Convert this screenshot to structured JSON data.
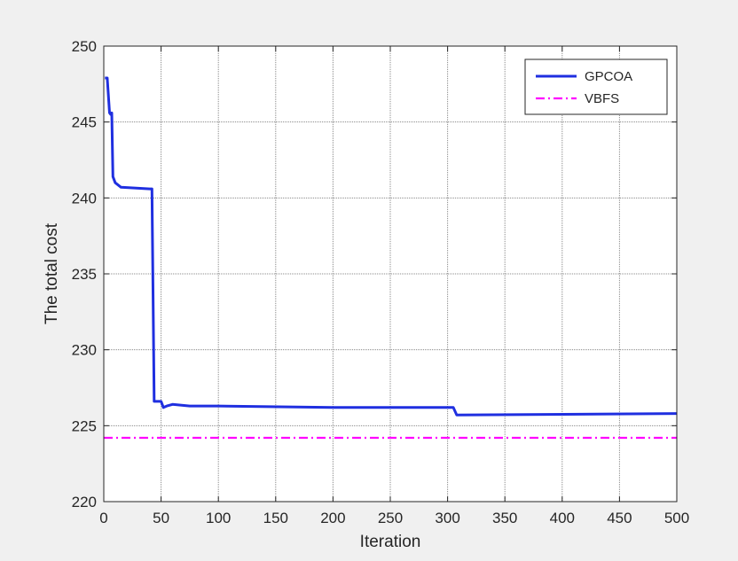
{
  "chart_data": {
    "type": "line",
    "title": "",
    "xlabel": "Iteration",
    "ylabel": "The total cost",
    "xlim": [
      0,
      500
    ],
    "ylim": [
      220,
      250
    ],
    "xticks": [
      0,
      50,
      100,
      150,
      200,
      250,
      300,
      350,
      400,
      450,
      500
    ],
    "yticks": [
      220,
      225,
      230,
      235,
      240,
      245,
      250
    ],
    "grid": true,
    "legend_position": "top-right",
    "series": [
      {
        "name": "GPCOA",
        "color": "#1f2fe0",
        "line_style": "solid",
        "x": [
          1,
          3,
          5,
          6,
          7,
          8,
          10,
          15,
          40,
          42,
          44,
          50,
          52,
          55,
          60,
          75,
          100,
          200,
          305,
          308,
          500
        ],
        "y": [
          247.9,
          247.9,
          245.6,
          245.5,
          245.6,
          241.4,
          241.0,
          240.7,
          240.6,
          240.6,
          226.6,
          226.6,
          226.2,
          226.3,
          226.4,
          226.3,
          226.3,
          226.2,
          226.2,
          225.7,
          225.8
        ]
      },
      {
        "name": "VBFS",
        "color": "#ff00ff",
        "line_style": "dash-dot",
        "x": [
          0,
          500
        ],
        "y": [
          224.2,
          224.2
        ]
      }
    ]
  }
}
